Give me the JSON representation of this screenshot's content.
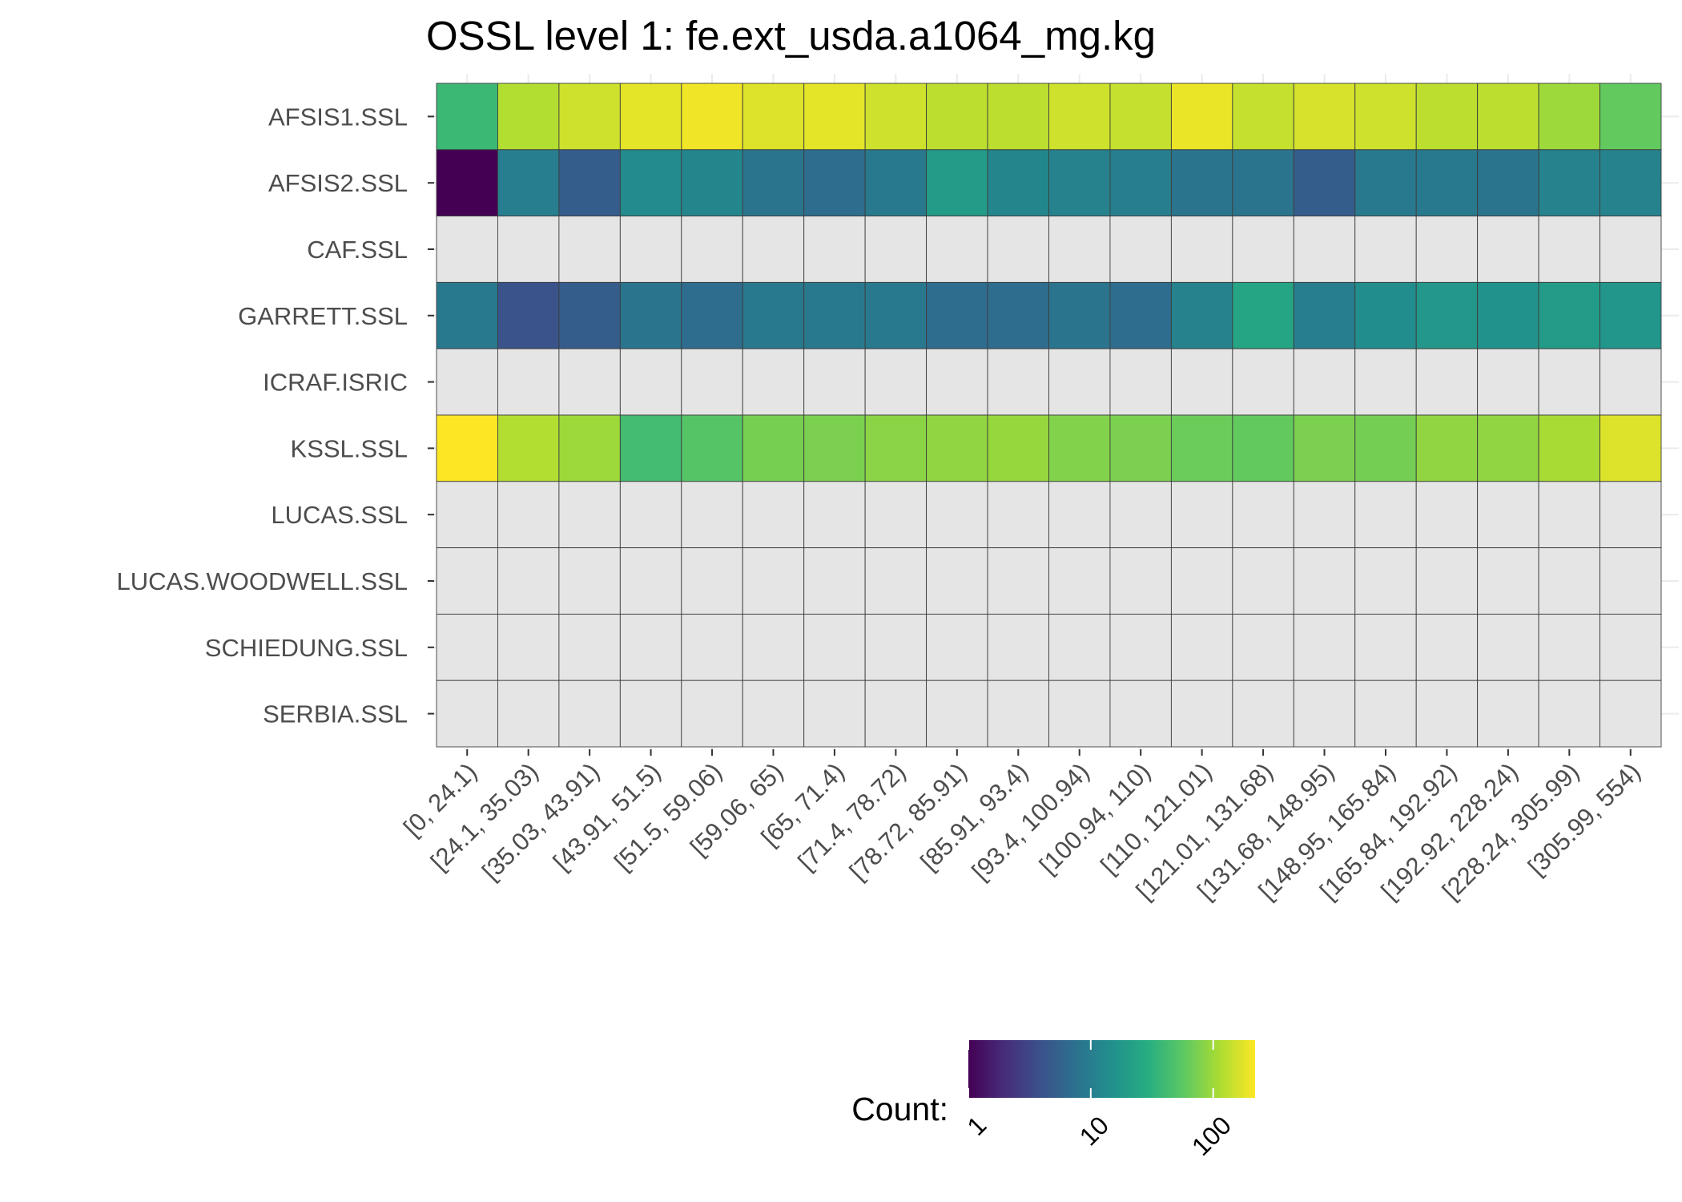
{
  "chart_data": {
    "type": "heatmap",
    "title": "OSSL level 1: fe.ext_usda.a1064_mg.kg",
    "xlabel": "",
    "ylabel": "",
    "x_categories": [
      "[0, 24.1)",
      "[24.1, 35.03)",
      "[35.03, 43.91)",
      "[43.91, 51.5)",
      "[51.5, 59.06)",
      "[59.06, 65)",
      "[65, 71.4)",
      "[71.4, 78.72)",
      "[78.72, 85.91)",
      "[85.91, 93.4)",
      "[93.4, 100.94)",
      "[100.94, 110)",
      "[110, 121.01)",
      "[121.01, 131.68)",
      "[131.68, 148.95)",
      "[148.95, 165.84)",
      "[165.84, 192.92)",
      "[192.92, 228.24)",
      "[228.24, 305.99)",
      "[305.99, 554)"
    ],
    "y_categories": [
      "AFSIS1.SSL",
      "AFSIS2.SSL",
      "CAF.SSL",
      "GARRETT.SSL",
      "ICRAF.ISRIC",
      "KSSL.SSL",
      "LUCAS.SSL",
      "LUCAS.WOODWELL.SSL",
      "SCHIEDUNG.SSL",
      "SERBIA.SSL"
    ],
    "values": [
      [
        38,
        120,
        150,
        180,
        200,
        170,
        180,
        150,
        130,
        130,
        150,
        140,
        190,
        140,
        160,
        150,
        130,
        130,
        100,
        60
      ],
      [
        1,
        10,
        5,
        13,
        12,
        8,
        7,
        9,
        19,
        12,
        11,
        10,
        8,
        8,
        5,
        9,
        9,
        8,
        11,
        11
      ],
      [
        null,
        null,
        null,
        null,
        null,
        null,
        null,
        null,
        null,
        null,
        null,
        null,
        null,
        null,
        null,
        null,
        null,
        null,
        null,
        null
      ],
      [
        9,
        4,
        5,
        8,
        7,
        9,
        9,
        9,
        7,
        7,
        8,
        7,
        11,
        24,
        10,
        14,
        18,
        16,
        19,
        17
      ],
      [
        null,
        null,
        null,
        null,
        null,
        null,
        null,
        null,
        null,
        null,
        null,
        null,
        null,
        null,
        null,
        null,
        null,
        null,
        null,
        null
      ],
      [
        220,
        120,
        100,
        42,
        52,
        72,
        75,
        85,
        90,
        95,
        80,
        75,
        65,
        60,
        75,
        70,
        90,
        90,
        110,
        170
      ],
      [
        null,
        null,
        null,
        null,
        null,
        null,
        null,
        null,
        null,
        null,
        null,
        null,
        null,
        null,
        null,
        null,
        null,
        null,
        null,
        null
      ],
      [
        null,
        null,
        null,
        null,
        null,
        null,
        null,
        null,
        null,
        null,
        null,
        null,
        null,
        null,
        null,
        null,
        null,
        null,
        null,
        null
      ],
      [
        null,
        null,
        null,
        null,
        null,
        null,
        null,
        null,
        null,
        null,
        null,
        null,
        null,
        null,
        null,
        null,
        null,
        null,
        null,
        null
      ],
      [
        null,
        null,
        null,
        null,
        null,
        null,
        null,
        null,
        null,
        null,
        null,
        null,
        null,
        null,
        null,
        null,
        null,
        null,
        null,
        null
      ]
    ],
    "scale": "log10",
    "value_range": [
      1,
      220
    ],
    "missing_color": "#e5e5e5",
    "palette": "viridis",
    "legend": {
      "title": "Count:",
      "ticks": [
        "1",
        "10",
        "100"
      ],
      "tick_values": [
        1,
        10,
        100
      ],
      "placement": "bottom"
    },
    "grid": true
  }
}
